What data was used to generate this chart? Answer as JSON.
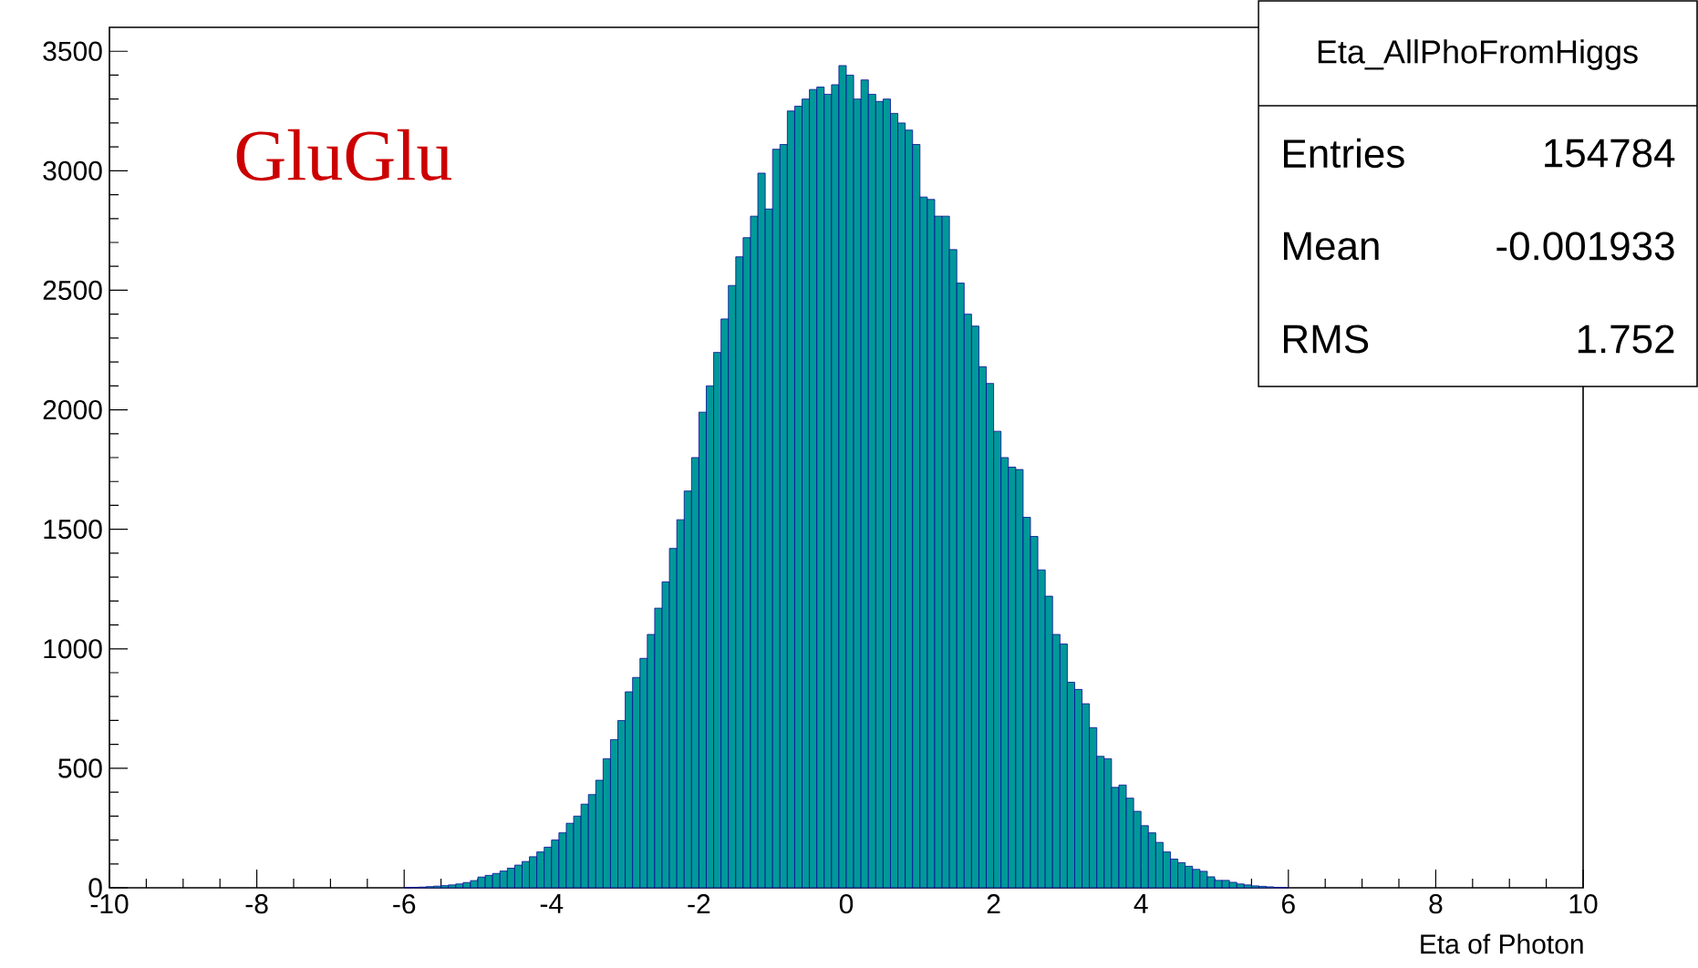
{
  "chart_data": {
    "type": "histogram",
    "title": "Eta_AllPhoFromHiggs",
    "xlabel": "Eta of Photon",
    "annotations": [
      "GluGlu",
      "Entries",
      "154784",
      "Mean",
      "-0.001933",
      "RMS",
      "1.752"
    ],
    "bins": [
      -6,
      -5.9,
      -5.8,
      -5.7,
      -5.6,
      -5.5,
      -5.4,
      -5.3,
      -5.2,
      -5.1,
      -5,
      -4.9,
      -4.8,
      -4.7,
      -4.6,
      -4.5,
      -4.4,
      -4.3,
      -4.2,
      -4.1,
      -4,
      -3.9,
      -3.8,
      -3.7,
      -3.6,
      -3.5,
      -3.4,
      -3.3,
      -3.2,
      -3.1,
      -3,
      -2.9,
      -2.8,
      -2.7,
      -2.6,
      -2.5,
      -2.4,
      -2.3,
      -2.2,
      -2.1,
      -2,
      -1.9,
      -1.8,
      -1.7,
      -1.6,
      -1.5,
      -1.4,
      -1.3,
      -1.2,
      -1.1,
      -1,
      -0.9,
      -0.8,
      -0.7,
      -0.6,
      -0.5,
      -0.4,
      -0.3,
      -0.2,
      -0.1,
      0,
      0.1,
      0.2,
      0.3,
      0.4,
      0.5,
      0.6,
      0.7,
      0.8,
      0.9,
      1,
      1.1,
      1.2,
      1.3,
      1.4,
      1.5,
      1.6,
      1.7,
      1.8,
      1.9,
      2,
      2.1,
      2.2,
      2.3,
      2.4,
      2.5,
      2.6,
      2.7,
      2.8,
      2.9,
      3,
      3.1,
      3.2,
      3.3,
      3.4,
      3.5,
      3.6,
      3.7,
      3.8,
      3.9,
      4,
      4.1,
      4.2,
      4.3,
      4.4,
      4.5,
      4.6,
      4.7,
      4.8,
      4.9,
      5,
      5.1,
      5.2,
      5.3,
      5.4,
      5.5,
      5.6,
      5.7,
      5.8,
      5.9,
      6
    ],
    "values": [
      1,
      2,
      3,
      5,
      7,
      9,
      12,
      16,
      22,
      30,
      45,
      52,
      60,
      70,
      82,
      95,
      110,
      130,
      150,
      170,
      200,
      230,
      270,
      300,
      350,
      390,
      450,
      540,
      620,
      700,
      820,
      880,
      960,
      1060,
      1170,
      1280,
      1420,
      1540,
      1660,
      1800,
      1990,
      2100,
      2240,
      2380,
      2520,
      2640,
      2720,
      2810,
      2990,
      2840,
      3090,
      3110,
      3250,
      3270,
      3300,
      3340,
      3350,
      3320,
      3360,
      3440,
      3400,
      3300,
      3380,
      3320,
      3290,
      3300,
      3240,
      3200,
      3170,
      3110,
      2890,
      2880,
      2810,
      2810,
      2670,
      2530,
      2400,
      2350,
      2180,
      2110,
      1910,
      1800,
      1760,
      1750,
      1550,
      1470,
      1330,
      1220,
      1060,
      1020,
      860,
      830,
      770,
      670,
      550,
      540,
      420,
      430,
      375,
      320,
      260,
      230,
      190,
      150,
      120,
      105,
      90,
      77,
      69,
      46,
      31,
      31,
      23,
      16,
      12,
      8,
      6,
      4,
      2,
      1
    ],
    "color": "#009999",
    "xlim": [
      -10,
      10
    ],
    "ylim": [
      0,
      3600
    ],
    "xticks": [
      -10,
      -8,
      -6,
      -4,
      -2,
      0,
      2,
      4,
      6,
      8,
      10
    ],
    "yticks": [
      0,
      500,
      1000,
      1500,
      2000,
      2500,
      3000,
      3500
    ],
    "grid": false
  }
}
